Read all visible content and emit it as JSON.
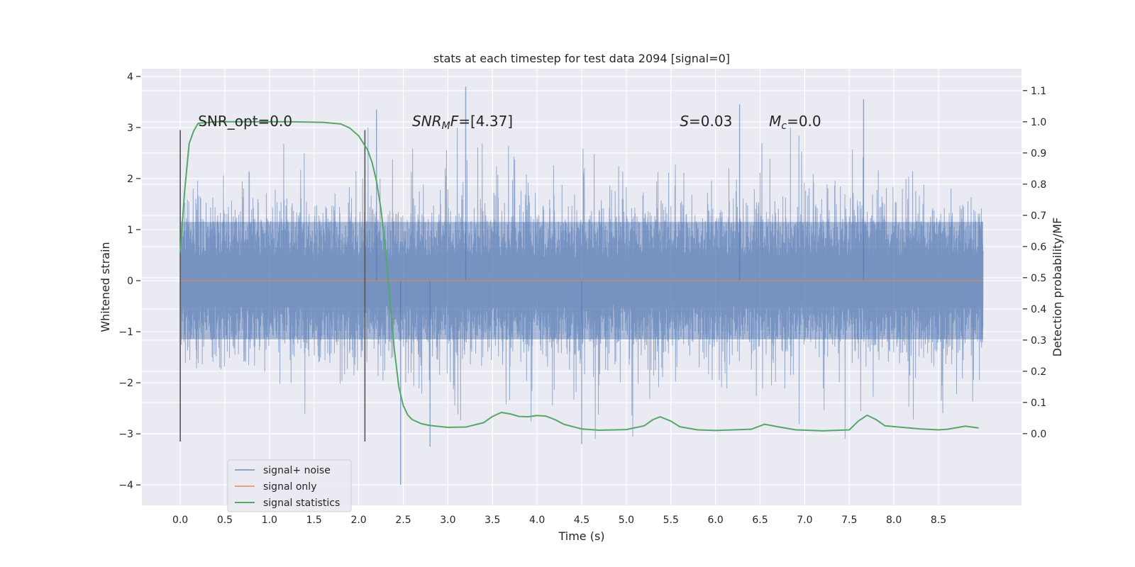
{
  "chart_data": {
    "type": "line",
    "title": "stats at each timestep for test data 2094 [signal=0]",
    "xlabel": "Time (s)",
    "ylabel": "Whitened strain",
    "y2label": "Detection probability/MF",
    "xlim": [
      -0.43,
      9.43
    ],
    "ylim": [
      -4.4,
      4.15
    ],
    "y2lim": [
      -0.23,
      1.17
    ],
    "xticks": [
      0.0,
      0.5,
      1.0,
      1.5,
      2.0,
      2.5,
      3.0,
      3.5,
      4.0,
      4.5,
      5.0,
      5.5,
      6.0,
      6.5,
      7.0,
      7.5,
      8.0,
      8.5
    ],
    "xtick_labels": [
      "0.0",
      "0.5",
      "1.0",
      "1.5",
      "2.0",
      "2.5",
      "3.0",
      "3.5",
      "4.0",
      "4.5",
      "5.0",
      "5.5",
      "6.0",
      "6.5",
      "7.0",
      "7.5",
      "8.0",
      "8.5"
    ],
    "yticks": [
      4,
      3,
      2,
      1,
      0,
      -1,
      -2,
      -3,
      -4
    ],
    "ytick_labels": [
      "4",
      "3",
      "2",
      "1",
      "0",
      "−1",
      "−2",
      "−3",
      "−4"
    ],
    "y2ticks": [
      1.1,
      1.0,
      0.9,
      0.8,
      0.7,
      0.6,
      0.5,
      0.4,
      0.3,
      0.2,
      0.1,
      0.0
    ],
    "y2tick_labels": [
      "1.1",
      "1.0",
      "0.9",
      "0.8",
      "0.7",
      "0.6",
      "0.5",
      "0.4",
      "0.3",
      "0.2",
      "0.1",
      "0.0"
    ],
    "grid": true,
    "legend_position": "lower-left",
    "series": [
      {
        "name": "signal+ noise",
        "color": "#4c72b0",
        "axis": "left",
        "style": "noise",
        "x_range": [
          0.0,
          9.0
        ],
        "envelope": 1.15,
        "spike_peaks": [
          [
            3.2,
            3.8
          ],
          [
            2.2,
            3.35
          ],
          [
            7.66,
            3.55
          ],
          [
            6.27,
            3.45
          ],
          [
            2.47,
            -4.0
          ],
          [
            4.5,
            -3.2
          ],
          [
            2.8,
            -3.25
          ]
        ]
      },
      {
        "name": "signal only",
        "color": "#dd8452",
        "axis": "left",
        "x": [
          0.0,
          9.0
        ],
        "y": [
          0.0,
          0.0
        ]
      },
      {
        "name": "signal statistics",
        "color": "#55a868",
        "axis": "right",
        "x": [
          0.0,
          0.05,
          0.1,
          0.15,
          0.2,
          0.4,
          0.8,
          1.2,
          1.6,
          1.8,
          1.9,
          2.0,
          2.1,
          2.15,
          2.2,
          2.25,
          2.3,
          2.35,
          2.4,
          2.45,
          2.5,
          2.55,
          2.6,
          2.7,
          2.8,
          3.0,
          3.2,
          3.4,
          3.5,
          3.6,
          3.7,
          3.8,
          3.9,
          4.0,
          4.1,
          4.2,
          4.3,
          4.5,
          4.7,
          5.0,
          5.2,
          5.3,
          5.38,
          5.5,
          5.6,
          5.8,
          6.0,
          6.2,
          6.4,
          6.55,
          6.7,
          6.9,
          7.2,
          7.5,
          7.6,
          7.7,
          7.8,
          7.9,
          8.1,
          8.3,
          8.5,
          8.6,
          8.8,
          8.95
        ],
        "y": [
          0.58,
          0.78,
          0.93,
          0.97,
          0.995,
          1.0,
          1.0,
          1.0,
          0.998,
          0.993,
          0.98,
          0.955,
          0.91,
          0.87,
          0.81,
          0.72,
          0.59,
          0.43,
          0.27,
          0.15,
          0.09,
          0.06,
          0.045,
          0.032,
          0.026,
          0.02,
          0.021,
          0.035,
          0.055,
          0.068,
          0.063,
          0.055,
          0.054,
          0.058,
          0.056,
          0.045,
          0.03,
          0.015,
          0.011,
          0.013,
          0.025,
          0.045,
          0.054,
          0.04,
          0.022,
          0.012,
          0.01,
          0.012,
          0.014,
          0.03,
          0.022,
          0.012,
          0.009,
          0.012,
          0.04,
          0.059,
          0.045,
          0.025,
          0.02,
          0.015,
          0.012,
          0.014,
          0.024,
          0.018
        ]
      }
    ],
    "vlines": [
      {
        "x": 0.0,
        "ymin": -3.15,
        "ymax": 2.95,
        "color": "#555555"
      },
      {
        "x": 2.07,
        "ymin": -3.15,
        "ymax": 2.95,
        "color": "#555555"
      }
    ],
    "annotations": [
      {
        "key": "snr_opt",
        "x": 0.2,
        "y": 3.0,
        "parts": [
          {
            "t": "SNR_opt=0.0"
          }
        ]
      },
      {
        "key": "snr_mf",
        "x": 2.6,
        "y": 3.0,
        "parts": [
          {
            "t": "SNR",
            "i": true
          },
          {
            "t": "M",
            "i": true,
            "sub": true
          },
          {
            "t": "F",
            "i": true
          },
          {
            "t": "=[4.37]"
          }
        ]
      },
      {
        "key": "s_value",
        "x": 5.6,
        "y": 3.0,
        "parts": [
          {
            "t": "S",
            "i": true
          },
          {
            "t": "=0.03"
          }
        ]
      },
      {
        "key": "mc_value",
        "x": 6.6,
        "y": 3.0,
        "parts": [
          {
            "t": "M",
            "i": true
          },
          {
            "t": "c",
            "i": true,
            "sub": true
          },
          {
            "t": "=0.0"
          }
        ]
      }
    ]
  }
}
